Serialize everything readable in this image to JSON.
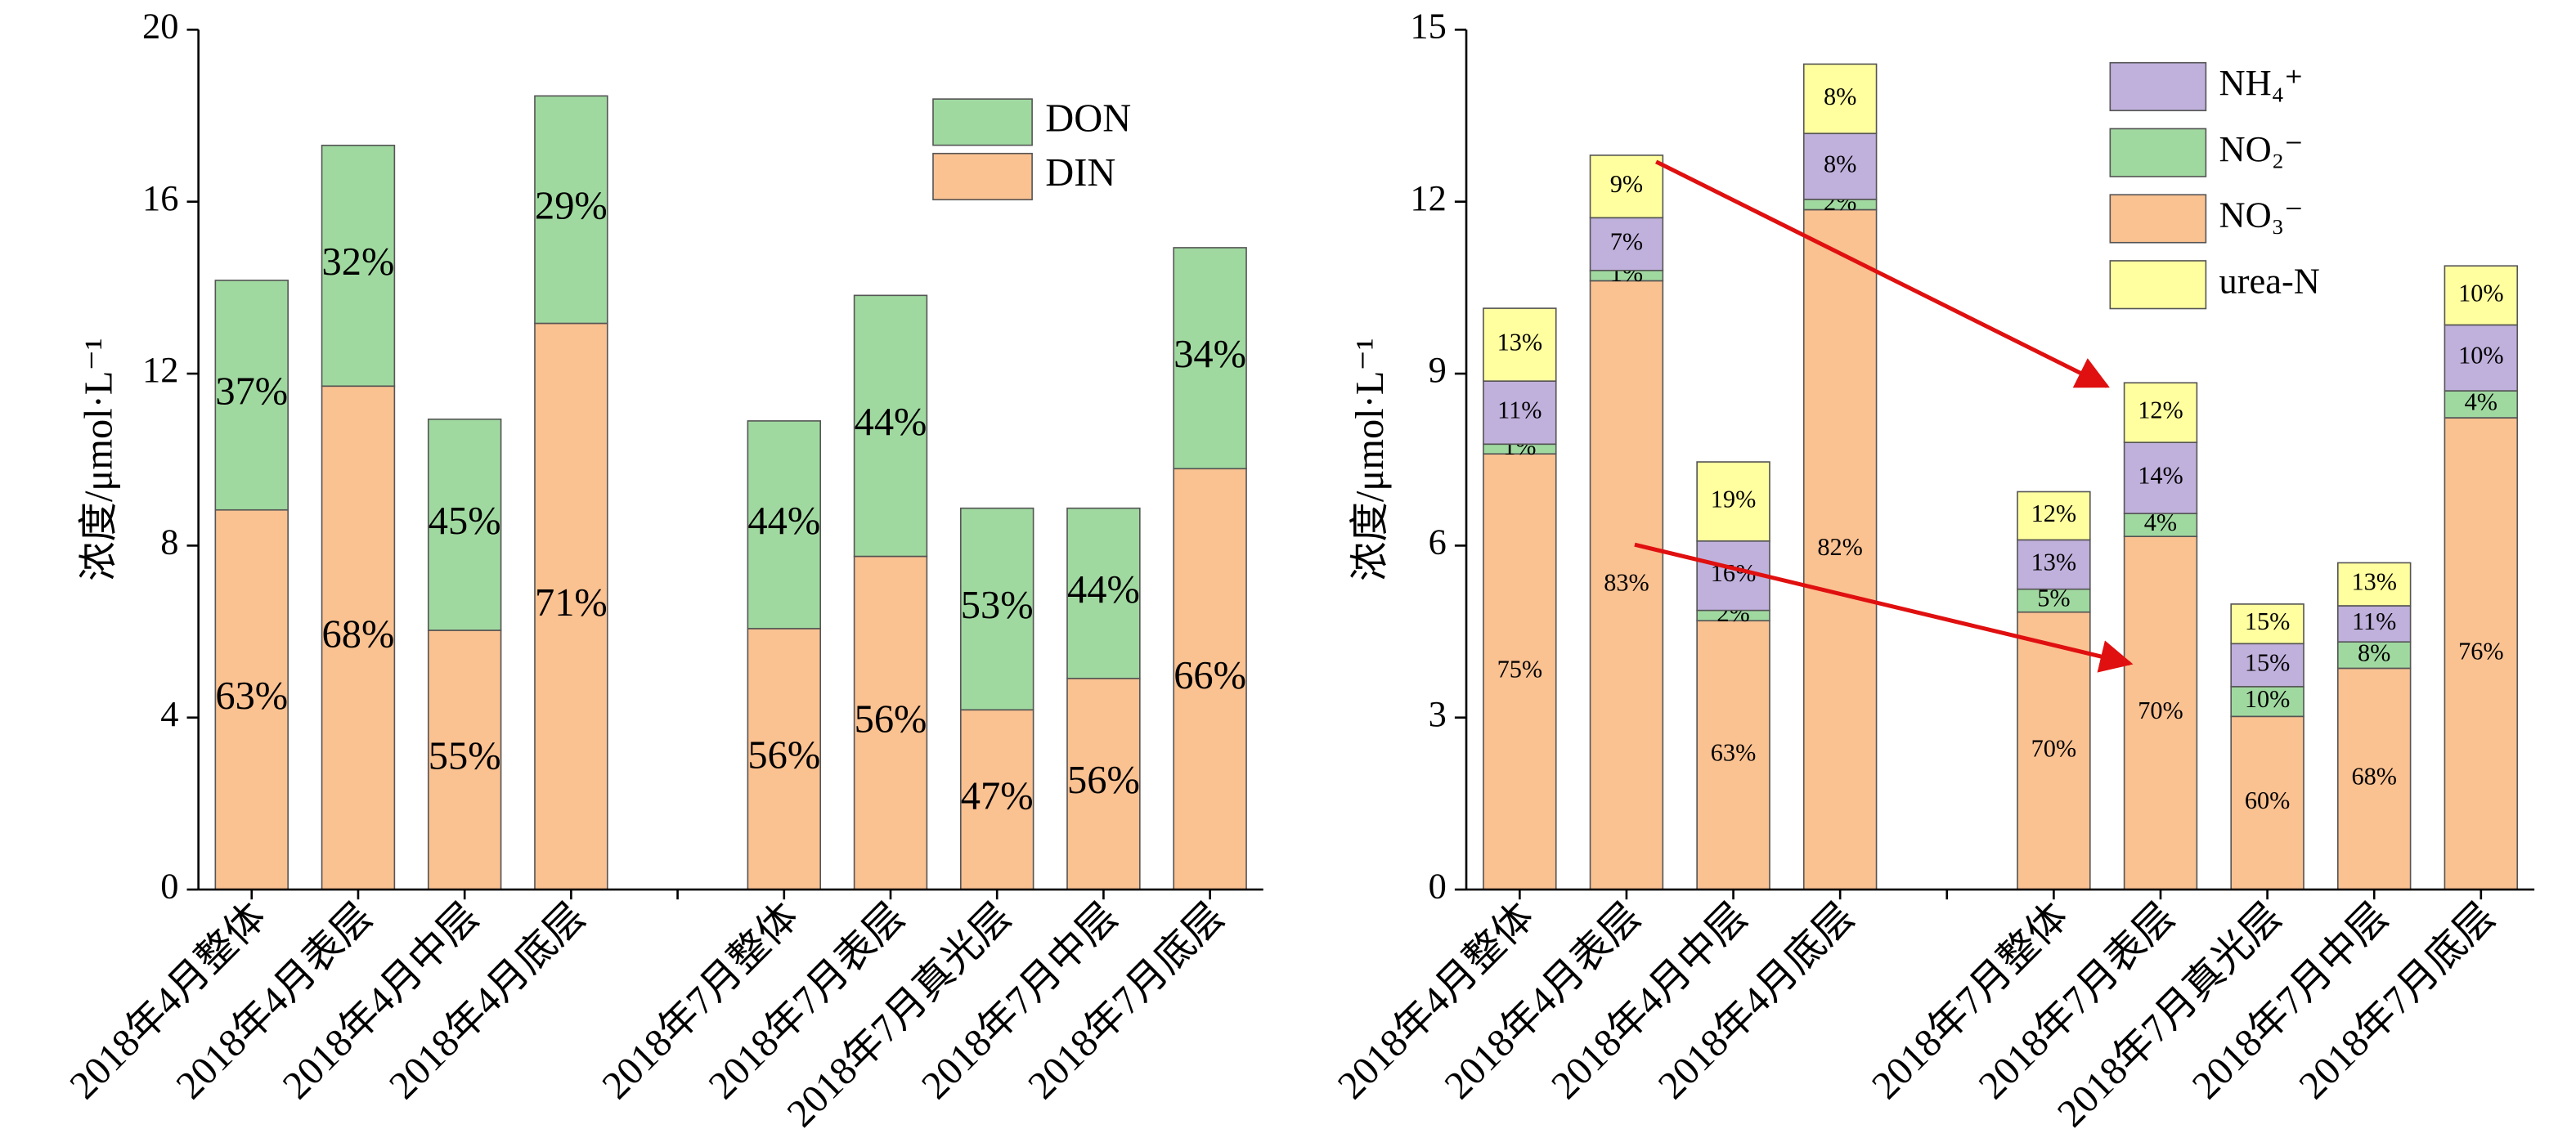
{
  "chart_data": [
    {
      "type": "stacked_bar",
      "ylabel": "浓度/μmol·L⁻¹",
      "categories": [
        "2018年4月整体",
        "2018年4月表层",
        "2018年4月中层",
        "2018年4月底层",
        null,
        "2018年7月整体",
        "2018年7月表层",
        "2018年7月真光层",
        "2018年7月中层",
        "2018年7月底层"
      ],
      "ylim": [
        0,
        20
      ],
      "yticks": [
        0,
        4,
        8,
        12,
        16,
        20
      ],
      "series": [
        {
          "name": "DIN",
          "color": "#fac191",
          "values": [
            8.83,
            11.71,
            6.03,
            13.17,
            null,
            6.07,
            7.75,
            4.18,
            4.91,
            9.79
          ],
          "value_labels": [
            "63%",
            "68%",
            "55%",
            "71%",
            null,
            "56%",
            "56%",
            "47%",
            "56%",
            "66%"
          ]
        },
        {
          "name": "DON",
          "color": "#a0d9a0",
          "values": [
            5.34,
            5.6,
            4.91,
            5.29,
            null,
            4.83,
            6.07,
            4.69,
            3.96,
            5.14
          ],
          "value_labels": [
            "37%",
            "32%",
            "45%",
            "29%",
            null,
            "44%",
            "44%",
            "53%",
            "44%",
            "34%"
          ]
        }
      ]
    },
    {
      "type": "stacked_bar",
      "ylabel": "浓度/μmol·L⁻¹",
      "categories": [
        "2018年4月整体",
        "2018年4月表层",
        "2018年4月中层",
        "2018年4月底层",
        null,
        "2018年7月整体",
        "2018年7月表层",
        "2018年7月真光层",
        "2018年7月中层",
        "2018年7月底层"
      ],
      "ylim": [
        0,
        15
      ],
      "yticks": [
        0,
        3,
        6,
        9,
        12,
        15
      ],
      "series": [
        {
          "name": "NO₃⁻",
          "color": "#fac191",
          "values": [
            7.6,
            10.62,
            4.69,
            11.86,
            null,
            4.84,
            6.16,
            3.02,
            3.86,
            8.23
          ],
          "value_labels": [
            "75%",
            "83%",
            "63%",
            "82%",
            null,
            "70%",
            "70%",
            "60%",
            "68%",
            "76%"
          ]
        },
        {
          "name": "NO₂⁻",
          "color": "#a0d9a0",
          "values": [
            0.17,
            0.18,
            0.18,
            0.18,
            null,
            0.4,
            0.4,
            0.52,
            0.46,
            0.47
          ],
          "value_labels": [
            "1%",
            "1%",
            "2%",
            "2%",
            null,
            "5%",
            "4%",
            "10%",
            "8%",
            "4%"
          ]
        },
        {
          "name": "NH₄⁺",
          "color": "#c0b0dc",
          "values": [
            1.1,
            0.92,
            1.21,
            1.15,
            null,
            0.86,
            1.24,
            0.75,
            0.63,
            1.15
          ],
          "value_labels": [
            "11%",
            "7%",
            "16%",
            "8%",
            null,
            "13%",
            "14%",
            "15%",
            "11%",
            "10%"
          ]
        },
        {
          "name": "urea-N",
          "color": "#ffff9f",
          "values": [
            1.27,
            1.09,
            1.38,
            1.21,
            null,
            0.84,
            1.04,
            0.69,
            0.75,
            1.03
          ],
          "value_labels": [
            "13%",
            "9%",
            "19%",
            "8%",
            null,
            "12%",
            "12%",
            "15%",
            "13%",
            "10%"
          ]
        }
      ]
    }
  ]
}
